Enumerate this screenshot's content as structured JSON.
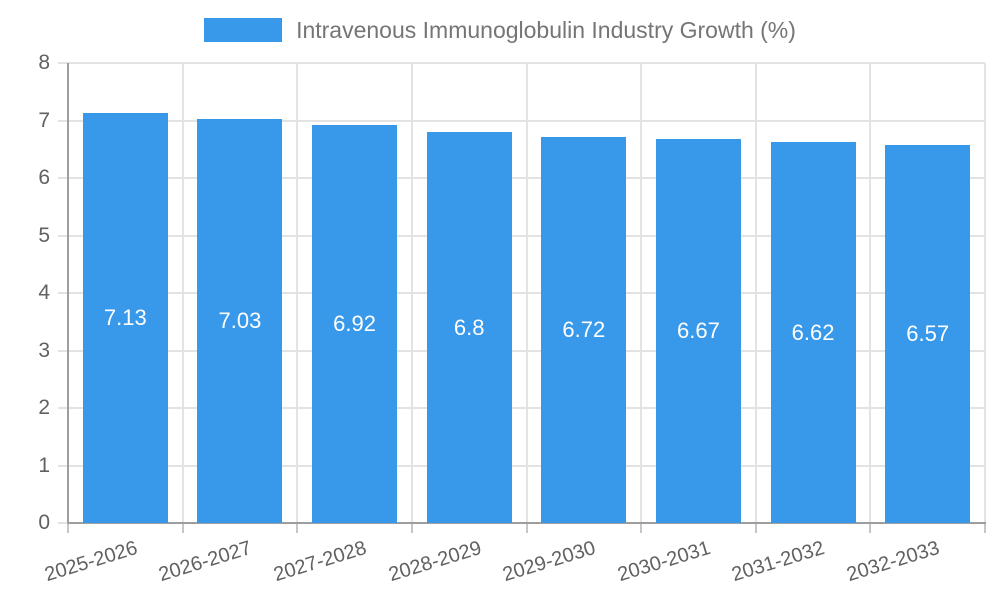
{
  "colors": {
    "bar": "#3898ea",
    "bar_value_label": "#ffffff",
    "legend_text": "#757575",
    "tick_text": "#616161",
    "grid": "#e3e3e3",
    "axis": "#9e9e9e",
    "tick_mark": "#c6c6c6",
    "background": "#ffffff"
  },
  "legend": {
    "label": "Intravenous Immunoglobulin Industry Growth (%)",
    "swatch_icon": "series-color-swatch"
  },
  "chart_data": {
    "type": "bar",
    "title": "Intravenous Immunoglobulin Industry Growth (%)",
    "categories": [
      "2025-2026",
      "2026-2027",
      "2027-2028",
      "2028-2029",
      "2029-2030",
      "2030-2031",
      "2031-2032",
      "2032-2033"
    ],
    "values": [
      7.13,
      7.03,
      6.92,
      6.8,
      6.72,
      6.67,
      6.62,
      6.57
    ],
    "value_labels": [
      "7.13",
      "7.03",
      "6.92",
      "6.8",
      "6.72",
      "6.67",
      "6.62",
      "6.57"
    ],
    "series_name": "Intravenous Immunoglobulin Industry Growth (%)",
    "xlabel": "",
    "ylabel": "",
    "ylim": [
      0,
      8
    ],
    "yticks": [
      0,
      1,
      2,
      3,
      4,
      5,
      6,
      7,
      8
    ],
    "grid": true,
    "legend_position": "top",
    "bar_color": "#3898ea",
    "value_label_position": "inside-center"
  }
}
